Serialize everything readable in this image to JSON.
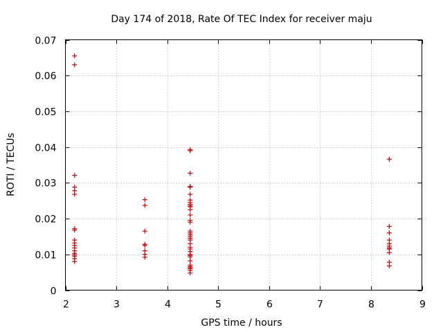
{
  "chart_data": {
    "type": "scatter",
    "title": "Day 174 of 2018, Rate Of TEC Index for receiver maju",
    "xlabel": "GPS time / hours",
    "ylabel": "ROTI / TECUs",
    "xlim": [
      2,
      9
    ],
    "ylim": [
      0,
      0.07
    ],
    "x_ticks": [
      2,
      3,
      4,
      5,
      6,
      7,
      8,
      9
    ],
    "x_tick_labels": [
      "2",
      "3",
      "4",
      "5",
      "6",
      "7",
      "8",
      "9"
    ],
    "y_ticks": [
      0,
      0.01,
      0.02,
      0.03,
      0.04,
      0.05,
      0.06,
      0.07
    ],
    "y_tick_labels": [
      "0",
      "0.01",
      "0.02",
      "0.03",
      "0.04",
      "0.05",
      "0.06",
      "0.07"
    ],
    "grid": true,
    "marker": "+",
    "color": "#cc0000",
    "series": [
      {
        "name": "ROTI",
        "points": [
          [
            2.18,
            0.0655
          ],
          [
            2.18,
            0.063
          ],
          [
            2.18,
            0.0321
          ],
          [
            2.18,
            0.0288
          ],
          [
            2.18,
            0.0278
          ],
          [
            2.18,
            0.0268
          ],
          [
            2.18,
            0.0172
          ],
          [
            2.18,
            0.0168
          ],
          [
            2.18,
            0.014
          ],
          [
            2.18,
            0.0132
          ],
          [
            2.18,
            0.0125
          ],
          [
            2.18,
            0.0118
          ],
          [
            2.18,
            0.011
          ],
          [
            2.18,
            0.0103
          ],
          [
            2.18,
            0.0099
          ],
          [
            2.18,
            0.0095
          ],
          [
            2.18,
            0.0088
          ],
          [
            2.18,
            0.008
          ],
          [
            3.56,
            0.0253
          ],
          [
            3.56,
            0.0237
          ],
          [
            3.56,
            0.0165
          ],
          [
            3.56,
            0.0128
          ],
          [
            3.56,
            0.0125
          ],
          [
            3.56,
            0.011
          ],
          [
            3.56,
            0.01
          ],
          [
            3.56,
            0.0092
          ],
          [
            4.45,
            0.0393
          ],
          [
            4.45,
            0.039
          ],
          [
            4.45,
            0.0327
          ],
          [
            4.45,
            0.029
          ],
          [
            4.45,
            0.0288
          ],
          [
            4.45,
            0.0268
          ],
          [
            4.45,
            0.0252
          ],
          [
            4.45,
            0.0245
          ],
          [
            4.45,
            0.024
          ],
          [
            4.45,
            0.0236
          ],
          [
            4.45,
            0.0233
          ],
          [
            4.45,
            0.0225
          ],
          [
            4.45,
            0.021
          ],
          [
            4.45,
            0.0195
          ],
          [
            4.45,
            0.019
          ],
          [
            4.45,
            0.0165
          ],
          [
            4.45,
            0.016
          ],
          [
            4.45,
            0.0155
          ],
          [
            4.45,
            0.015
          ],
          [
            4.45,
            0.0145
          ],
          [
            4.45,
            0.014
          ],
          [
            4.45,
            0.013
          ],
          [
            4.45,
            0.012
          ],
          [
            4.45,
            0.0115
          ],
          [
            4.45,
            0.0108
          ],
          [
            4.45,
            0.01
          ],
          [
            4.45,
            0.0097
          ],
          [
            4.45,
            0.0093
          ],
          [
            4.45,
            0.0082
          ],
          [
            4.45,
            0.007
          ],
          [
            4.45,
            0.0066
          ],
          [
            4.45,
            0.0063
          ],
          [
            4.45,
            0.006
          ],
          [
            4.45,
            0.0055
          ],
          [
            4.45,
            0.0048
          ],
          [
            8.36,
            0.0366
          ],
          [
            8.36,
            0.0178
          ],
          [
            8.36,
            0.016
          ],
          [
            8.36,
            0.014
          ],
          [
            8.36,
            0.013
          ],
          [
            8.36,
            0.0123
          ],
          [
            8.36,
            0.0118
          ],
          [
            8.36,
            0.0115
          ],
          [
            8.36,
            0.0105
          ],
          [
            8.36,
            0.0078
          ],
          [
            8.36,
            0.0068
          ]
        ]
      }
    ]
  }
}
